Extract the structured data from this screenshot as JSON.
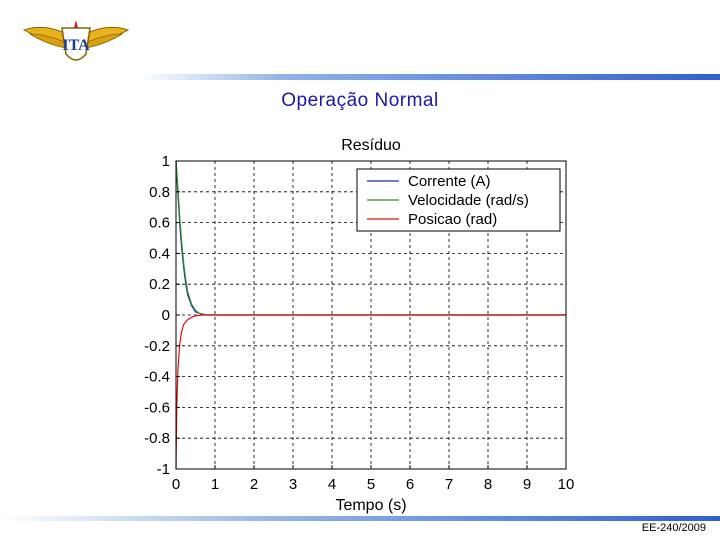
{
  "slide": {
    "title": "Operação Normal",
    "footer": "EE-240/2009",
    "logo_text": "ITA"
  },
  "colors": {
    "title": "#1a1aa6",
    "corrente": "#1f2fa8",
    "velocidade": "#2e8b2e",
    "posicao": "#e01010",
    "bar": "#2f5fd0"
  },
  "chart_data": {
    "type": "line",
    "title": "Resíduo",
    "xlabel": "Tempo (s)",
    "ylabel": "",
    "xlim": [
      0,
      10
    ],
    "ylim": [
      -1,
      1
    ],
    "xticks": [
      "0",
      "1",
      "2",
      "3",
      "4",
      "5",
      "6",
      "7",
      "8",
      "9",
      "10"
    ],
    "yticks": [
      "1",
      "0.8",
      "0.6",
      "0.4",
      "0.2",
      "0",
      "-0.2",
      "-0.4",
      "-0.6",
      "-0.8",
      "-1"
    ],
    "grid": true,
    "legend_position": "top-right",
    "series": [
      {
        "name": "Corrente (A)",
        "color": "#1f2fa8",
        "x": [
          0,
          0.05,
          0.1,
          0.15,
          0.2,
          0.25,
          0.3,
          0.4,
          0.5,
          0.6,
          0.8,
          1,
          10
        ],
        "y": [
          1.0,
          0.78,
          0.58,
          0.42,
          0.3,
          0.2,
          0.13,
          0.06,
          0.02,
          0.01,
          0,
          0,
          0
        ]
      },
      {
        "name": "Velocidade (rad/s)",
        "color": "#2e8b2e",
        "x": [
          0,
          0.05,
          0.1,
          0.15,
          0.2,
          0.25,
          0.3,
          0.4,
          0.5,
          0.6,
          0.8,
          1,
          10
        ],
        "y": [
          1.0,
          0.82,
          0.62,
          0.46,
          0.33,
          0.23,
          0.15,
          0.07,
          0.03,
          0.01,
          0,
          0,
          0
        ]
      },
      {
        "name": "Posicao (rad)",
        "color": "#e01010",
        "x": [
          0,
          0.02,
          0.05,
          0.1,
          0.15,
          0.2,
          0.3,
          0.4,
          0.5,
          0.7,
          1,
          10
        ],
        "y": [
          -1.0,
          -0.6,
          -0.35,
          -0.18,
          -0.1,
          -0.06,
          -0.03,
          -0.015,
          -0.005,
          0,
          0,
          0
        ]
      }
    ]
  }
}
